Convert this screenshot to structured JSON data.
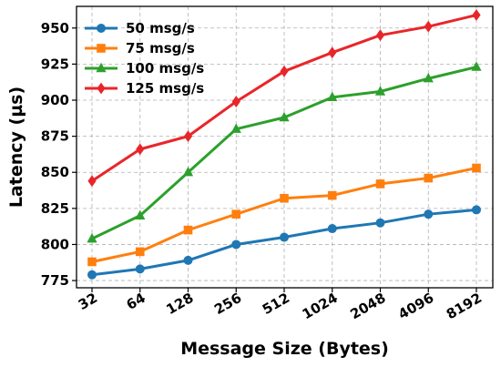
{
  "chart_data": {
    "type": "line",
    "title": "",
    "xlabel": "Message Size (Bytes)",
    "ylabel": "Latency (µs)",
    "categories": [
      "32",
      "64",
      "128",
      "256",
      "512",
      "1024",
      "2048",
      "4096",
      "8192"
    ],
    "ylim": [
      770,
      965
    ],
    "yticks": [
      775,
      800,
      825,
      850,
      875,
      900,
      925,
      950
    ],
    "grid": true,
    "legend_position": "top-left",
    "series": [
      {
        "name": "50 msg/s",
        "color": "#1f77b4",
        "marker": "circle",
        "values": [
          779,
          783,
          789,
          800,
          805,
          811,
          815,
          821,
          824
        ]
      },
      {
        "name": "75 msg/s",
        "color": "#ff7f0e",
        "marker": "square",
        "values": [
          788,
          795,
          810,
          821,
          832,
          834,
          842,
          846,
          853
        ]
      },
      {
        "name": "100 msg/s",
        "color": "#2ca02c",
        "marker": "triangle",
        "values": [
          804,
          820,
          850,
          880,
          888,
          902,
          906,
          915,
          923
        ]
      },
      {
        "name": "125 msg/s",
        "color": "#e8262a",
        "marker": "diamond",
        "values": [
          844,
          866,
          875,
          899,
          920,
          933,
          945,
          951,
          959
        ]
      }
    ]
  }
}
